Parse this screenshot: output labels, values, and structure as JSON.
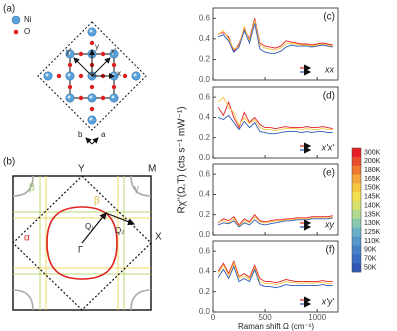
{
  "diagram_a": {
    "label": "(a)",
    "legend_ni": "Ni",
    "legend_o": "O",
    "x": "x",
    "y": "y",
    "x_prime": "x'",
    "y_prime": "y'",
    "b": "b",
    "a": "a"
  },
  "diagram_b": {
    "label": "(b)",
    "Y": "Y",
    "M": "M",
    "X": "X",
    "gamma_point": "Γ",
    "alpha": "α",
    "beta_1": "β",
    "beta_2": "β",
    "gamma": "γ",
    "q1": "Q₁",
    "q2": "Q₂"
  },
  "axes": {
    "y_label": "Rχ''(Ω,T) (cts s⁻¹ mW⁻¹)",
    "x_label": "Raman shift Ω (cm⁻¹)"
  },
  "colorbar": {
    "labels": [
      "300K",
      "200K",
      "180K",
      "165K",
      "150K",
      "145K",
      "140K",
      "135K",
      "130K",
      "125K",
      "110K",
      "90K",
      "70K",
      "50K"
    ],
    "colors": [
      "#e41e26",
      "#ea4a2c",
      "#ef7a32",
      "#f3a43a",
      "#f5c842",
      "#f2e050",
      "#d8e070",
      "#b0d890",
      "#88c8b0",
      "#68b0c8",
      "#5498cc",
      "#4682c8",
      "#3a6ec2",
      "#3058b4"
    ]
  },
  "chart_data": [
    {
      "type": "line",
      "title": "(c)",
      "annotation": "xx",
      "x": [
        50,
        100,
        150,
        200,
        250,
        300,
        350,
        400,
        450,
        500,
        550,
        600,
        650,
        700,
        750,
        800,
        850,
        900,
        950,
        1000,
        1050,
        1100,
        1150
      ],
      "xlim": [
        0,
        1200
      ],
      "xticks": [
        0,
        500,
        1000
      ],
      "ylim": [
        0,
        0.7
      ],
      "yticks": [
        {
          "value": 0,
          "label": "0.0"
        },
        {
          "value": 0.2,
          "label": "0.2"
        },
        {
          "value": 0.4,
          "label": "0.4"
        },
        {
          "value": 0.6,
          "label": "0.6"
        }
      ],
      "series": [
        {
          "name": "300K",
          "color": "#e41e26",
          "values": [
            0.45,
            0.46,
            0.42,
            0.28,
            0.35,
            0.5,
            0.4,
            0.6,
            0.36,
            0.33,
            0.32,
            0.31,
            0.33,
            0.38,
            0.37,
            0.36,
            0.35,
            0.35,
            0.34,
            0.35,
            0.36,
            0.35,
            0.34
          ]
        },
        {
          "name": "150K",
          "color": "#f5c842",
          "values": [
            0.44,
            0.48,
            0.4,
            0.3,
            0.33,
            0.52,
            0.38,
            0.58,
            0.34,
            0.31,
            0.3,
            0.29,
            0.31,
            0.35,
            0.36,
            0.35,
            0.34,
            0.34,
            0.33,
            0.34,
            0.35,
            0.34,
            0.33
          ]
        },
        {
          "name": "50K",
          "color": "#3058b4",
          "values": [
            0.42,
            0.44,
            0.38,
            0.27,
            0.32,
            0.48,
            0.36,
            0.55,
            0.3,
            0.27,
            0.26,
            0.26,
            0.28,
            0.32,
            0.34,
            0.33,
            0.33,
            0.33,
            0.32,
            0.33,
            0.34,
            0.33,
            0.32
          ]
        }
      ]
    },
    {
      "type": "line",
      "title": "(d)",
      "annotation": "x'x'",
      "x": [
        50,
        100,
        150,
        200,
        250,
        300,
        350,
        400,
        450,
        500,
        550,
        600,
        650,
        700,
        750,
        800,
        850,
        900,
        950,
        1000,
        1050,
        1100,
        1150
      ],
      "xlim": [
        0,
        1200
      ],
      "xticks": [
        0,
        500,
        1000
      ],
      "ylim": [
        0,
        0.7
      ],
      "yticks": [
        {
          "value": 0,
          "label": "0.0"
        },
        {
          "value": 0.2,
          "label": "0.2"
        },
        {
          "value": 0.4,
          "label": "0.4"
        },
        {
          "value": 0.6,
          "label": "0.6"
        }
      ],
      "series": [
        {
          "name": "300K",
          "color": "#e41e26",
          "values": [
            0.5,
            0.42,
            0.55,
            0.4,
            0.3,
            0.45,
            0.35,
            0.4,
            0.33,
            0.3,
            0.3,
            0.29,
            0.3,
            0.31,
            0.3,
            0.3,
            0.3,
            0.31,
            0.3,
            0.3,
            0.31,
            0.3,
            0.29
          ]
        },
        {
          "name": "150K",
          "color": "#f5c842",
          "values": [
            0.55,
            0.6,
            0.5,
            0.45,
            0.32,
            0.4,
            0.34,
            0.38,
            0.3,
            0.28,
            0.28,
            0.27,
            0.28,
            0.29,
            0.29,
            0.29,
            0.28,
            0.29,
            0.28,
            0.28,
            0.29,
            0.28,
            0.28
          ]
        },
        {
          "name": "50K",
          "color": "#3058b4",
          "values": [
            0.4,
            0.38,
            0.42,
            0.35,
            0.28,
            0.36,
            0.3,
            0.35,
            0.26,
            0.25,
            0.24,
            0.24,
            0.25,
            0.26,
            0.26,
            0.26,
            0.25,
            0.26,
            0.25,
            0.26,
            0.26,
            0.25,
            0.25
          ]
        }
      ]
    },
    {
      "type": "line",
      "title": "(e)",
      "annotation": "xy",
      "x": [
        50,
        100,
        150,
        200,
        250,
        300,
        350,
        400,
        450,
        500,
        550,
        600,
        650,
        700,
        750,
        800,
        850,
        900,
        950,
        1000,
        1050,
        1100,
        1150
      ],
      "xlim": [
        0,
        1200
      ],
      "xticks": [
        0,
        500,
        1000
      ],
      "ylim": [
        0,
        0.7
      ],
      "yticks": [
        {
          "value": 0,
          "label": "0.0"
        },
        {
          "value": 0.2,
          "label": "0.2"
        },
        {
          "value": 0.4,
          "label": "0.4"
        },
        {
          "value": 0.6,
          "label": "0.6"
        }
      ],
      "series": [
        {
          "name": "300K",
          "color": "#e41e26",
          "values": [
            0.12,
            0.16,
            0.14,
            0.18,
            0.1,
            0.16,
            0.13,
            0.2,
            0.14,
            0.13,
            0.14,
            0.15,
            0.15,
            0.16,
            0.16,
            0.17,
            0.17,
            0.17,
            0.18,
            0.18,
            0.18,
            0.18,
            0.19
          ]
        },
        {
          "name": "150K",
          "color": "#f5c842",
          "values": [
            0.13,
            0.14,
            0.12,
            0.16,
            0.09,
            0.14,
            0.12,
            0.18,
            0.13,
            0.12,
            0.13,
            0.14,
            0.14,
            0.15,
            0.15,
            0.16,
            0.16,
            0.16,
            0.17,
            0.17,
            0.17,
            0.17,
            0.18
          ]
        },
        {
          "name": "50K",
          "color": "#3058b4",
          "values": [
            0.1,
            0.12,
            0.11,
            0.14,
            0.08,
            0.12,
            0.1,
            0.15,
            0.11,
            0.1,
            0.11,
            0.12,
            0.13,
            0.14,
            0.14,
            0.15,
            0.15,
            0.15,
            0.16,
            0.16,
            0.16,
            0.16,
            0.17
          ]
        }
      ]
    },
    {
      "type": "line",
      "title": "(f)",
      "annotation": "x'y'",
      "x": [
        50,
        100,
        150,
        200,
        250,
        300,
        350,
        400,
        450,
        500,
        550,
        600,
        650,
        700,
        750,
        800,
        850,
        900,
        950,
        1000,
        1050,
        1100,
        1150
      ],
      "xlim": [
        0,
        1200
      ],
      "xticks": [
        0,
        500,
        1000
      ],
      "ylim": [
        0,
        0.7
      ],
      "yticks": [
        {
          "value": 0,
          "label": "0.0"
        },
        {
          "value": 0.2,
          "label": "0.2"
        },
        {
          "value": 0.4,
          "label": "0.4"
        },
        {
          "value": 0.6,
          "label": "0.6"
        }
      ],
      "series": [
        {
          "name": "300K",
          "color": "#e41e26",
          "values": [
            0.4,
            0.48,
            0.38,
            0.5,
            0.35,
            0.38,
            0.34,
            0.46,
            0.33,
            0.3,
            0.3,
            0.29,
            0.3,
            0.32,
            0.31,
            0.3,
            0.3,
            0.3,
            0.3,
            0.3,
            0.31,
            0.3,
            0.3
          ]
        },
        {
          "name": "150K",
          "color": "#f5c842",
          "values": [
            0.38,
            0.46,
            0.36,
            0.48,
            0.33,
            0.36,
            0.32,
            0.44,
            0.3,
            0.28,
            0.28,
            0.27,
            0.28,
            0.3,
            0.29,
            0.29,
            0.28,
            0.29,
            0.28,
            0.29,
            0.29,
            0.28,
            0.28
          ]
        },
        {
          "name": "50K",
          "color": "#3058b4",
          "values": [
            0.34,
            0.42,
            0.33,
            0.45,
            0.3,
            0.33,
            0.3,
            0.42,
            0.27,
            0.25,
            0.25,
            0.24,
            0.25,
            0.27,
            0.26,
            0.26,
            0.26,
            0.26,
            0.26,
            0.26,
            0.27,
            0.26,
            0.26
          ]
        }
      ]
    }
  ]
}
